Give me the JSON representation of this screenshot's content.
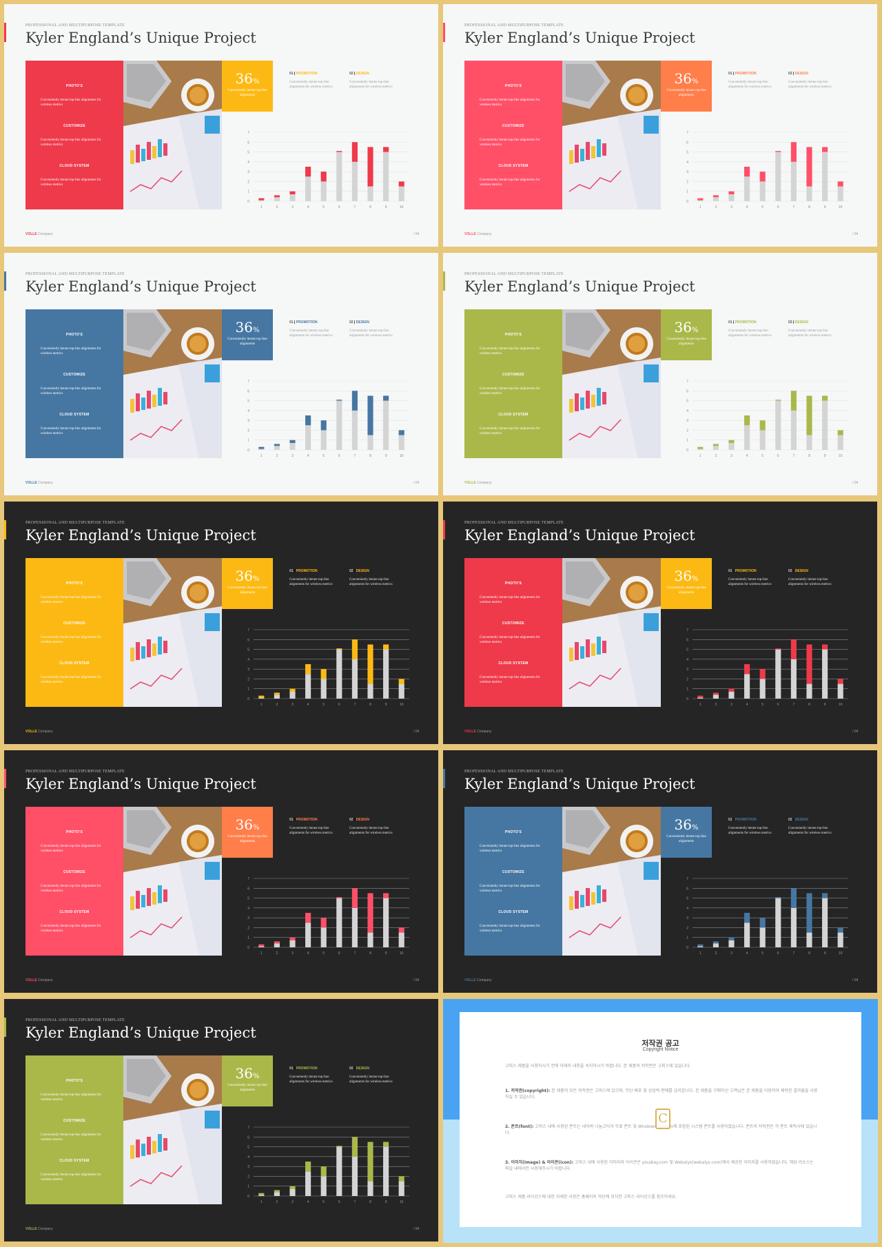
{
  "slide_common": {
    "subtitle": "PROFESSIONAL AND MULTIPURPOSE  TEMPLATE",
    "title": "Kyler England’s Unique Project",
    "panel_items": [
      {
        "heading": "PHOTO'S",
        "text": "Conveniently iterate top-line alignments for wireless metrics"
      },
      {
        "heading": "CUSTOMIZE",
        "text": "Conveniently iterate top-line alignments for wireless metrics"
      },
      {
        "heading": "CLOUD SYSTEM",
        "text": "Conveniently iterate top-line alignments for wireless metrics"
      }
    ],
    "percent_value": "36",
    "percent_sign": "%",
    "percent_caption": "Conveniently iterate top-line alignments",
    "columns": [
      {
        "num": "01",
        "label": "PROMOTION",
        "text": "Conveniently iterate top-line alignments for wireless metrics"
      },
      {
        "num": "02",
        "label": "DESIGN",
        "text": "Conveniently iterate top-line alignments for wireless metrics"
      }
    ],
    "footer_brand": "VOLLE",
    "footer_text": "Company",
    "page_num": "/ 04"
  },
  "slides": [
    {
      "theme": "light",
      "accent": "#ee3a4a",
      "percent_bg": "#fdb913",
      "label_color": "#fdb913"
    },
    {
      "theme": "light",
      "accent": "#ff5068",
      "percent_bg": "#ff7e4a",
      "label_color": "#ff7e4a"
    },
    {
      "theme": "light",
      "accent": "#4677a2",
      "percent_bg": "#4677a2",
      "label_color": "#4677a2"
    },
    {
      "theme": "light",
      "accent": "#aab84a",
      "percent_bg": "#aab84a",
      "label_color": "#aab84a"
    },
    {
      "theme": "dark",
      "accent": "#fdb913",
      "percent_bg": "#fdb913",
      "label_color": "#fdb913"
    },
    {
      "theme": "dark",
      "accent": "#ee3a4a",
      "percent_bg": "#fdb913",
      "label_color": "#fdb913"
    },
    {
      "theme": "dark",
      "accent": "#ff5068",
      "percent_bg": "#ff7e4a",
      "label_color": "#ff7e4a"
    },
    {
      "theme": "dark",
      "accent": "#4677a2",
      "percent_bg": "#4677a2",
      "label_color": "#4677a2"
    },
    {
      "theme": "dark",
      "accent": "#aab84a",
      "percent_bg": "#aab84a",
      "label_color": "#aab84a"
    }
  ],
  "chart_data": {
    "type": "bar",
    "stacked": true,
    "categories": [
      "1",
      "2",
      "3",
      "4",
      "5",
      "6",
      "7",
      "8",
      "9",
      "10"
    ],
    "ylim": [
      0,
      7
    ],
    "yticks": [
      "0",
      "1",
      "2",
      "3",
      "4",
      "5",
      "6",
      "7"
    ],
    "series": [
      {
        "values": [
          0.1,
          0.4,
          0.7,
          2.5,
          2.0,
          5.0,
          4.0,
          1.5,
          5.0,
          1.5
        ]
      },
      {
        "values": [
          0.2,
          0.2,
          0.3,
          1.0,
          1.0,
          0.1,
          2.0,
          4.0,
          0.5,
          0.5
        ]
      }
    ],
    "base_color": "#d4d4d4",
    "grid": true
  },
  "copyright": {
    "title": "저작권 공고",
    "subtitle": "Copyright Notice",
    "intro": "고피스 제품을 사용하시기 전에 아래의 내용을 숙지하시기 바랍니다. 본 제품의 저작권은 고피스에 있습니다.",
    "sections": [
      {
        "head": "1. 저작권(copyright):",
        "text": "본 제품의 모든 저작권은 고피스에 있으며, 무단 배포 및 상업적 판매를 금지합니다. 본 제품을 구매하신 고객님은 본 제품을 이용하여 제작한 결과물을 사용하실 수 있습니다."
      },
      {
        "head": "2. 폰트(font):",
        "text": "고피스 내에 사용된 폰트는 네이버 나눔고딕과 무료 폰트 및 Windows System에 포함된 시스템 폰트를 사용하였습니다. 폰트의 저작권은 각 폰트 제작사에 있습니다."
      },
      {
        "head": "3. 이미지(image) & 아이콘(icon):",
        "text": "고피스 내에 사용된 이미지와 아이콘은 pixabay.com 및 Webalys(webalys.com)에서 제공한 이미지를 사용하였습니다. 해당 리소스는 파일 내에서만 사용해주시기 바랍니다."
      }
    ],
    "closing": "고피스 제품 라이선스에 대한 자세한 사항은 홈페이지 하단에 위치한 고피스 라이선스를 참조하세요.",
    "logo_letter": "C"
  }
}
